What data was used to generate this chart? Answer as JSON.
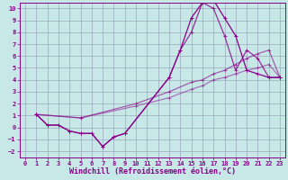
{
  "background_color": "#c8e8e8",
  "grid_color": "#99aabb",
  "line_color": "#880088",
  "xlabel": "Windchill (Refroidissement éolien,°C)",
  "xlim": [
    -0.5,
    23.5
  ],
  "ylim": [
    -2.5,
    10.5
  ],
  "xticks": [
    0,
    1,
    2,
    3,
    4,
    5,
    6,
    7,
    8,
    9,
    10,
    11,
    12,
    13,
    14,
    15,
    16,
    17,
    18,
    19,
    20,
    21,
    22,
    23
  ],
  "yticks": [
    -2,
    -1,
    0,
    1,
    2,
    3,
    4,
    5,
    6,
    7,
    8,
    9,
    10
  ],
  "line1_x": [
    1,
    2,
    3,
    4,
    5,
    6,
    7,
    8,
    9,
    13,
    14,
    15,
    16,
    17,
    18,
    19,
    20,
    21,
    22,
    23
  ],
  "line1_y": [
    1.1,
    0.2,
    0.2,
    -0.3,
    -0.5,
    -0.5,
    -1.6,
    -0.8,
    -0.5,
    4.2,
    6.5,
    9.2,
    10.5,
    10.7,
    9.2,
    7.7,
    4.8,
    4.5,
    4.2,
    4.2
  ],
  "line2_x": [
    1,
    2,
    3,
    4,
    5,
    6,
    7,
    8,
    9,
    13,
    14,
    15,
    16,
    17,
    18,
    19,
    20,
    21,
    22,
    23
  ],
  "line2_y": [
    1.1,
    0.2,
    0.2,
    -0.3,
    -0.5,
    -0.5,
    -1.6,
    -0.8,
    -0.5,
    4.2,
    6.5,
    8.0,
    10.5,
    10.0,
    7.7,
    4.8,
    6.5,
    5.8,
    4.2,
    4.2
  ],
  "line3_x": [
    1,
    5,
    10,
    13,
    15,
    16,
    17,
    18,
    19,
    20,
    21,
    22,
    23
  ],
  "line3_y": [
    1.1,
    0.8,
    2.0,
    3.0,
    3.8,
    4.0,
    4.5,
    4.8,
    5.3,
    5.8,
    6.2,
    6.5,
    4.2
  ],
  "line4_x": [
    1,
    5,
    10,
    13,
    15,
    16,
    17,
    18,
    19,
    20,
    21,
    22,
    23
  ],
  "line4_y": [
    1.1,
    0.8,
    1.8,
    2.5,
    3.2,
    3.5,
    4.0,
    4.2,
    4.5,
    4.8,
    5.0,
    5.3,
    4.2
  ],
  "markersize": 3,
  "linewidth": 0.9,
  "tick_fontsize": 5,
  "xlabel_fontsize": 6
}
